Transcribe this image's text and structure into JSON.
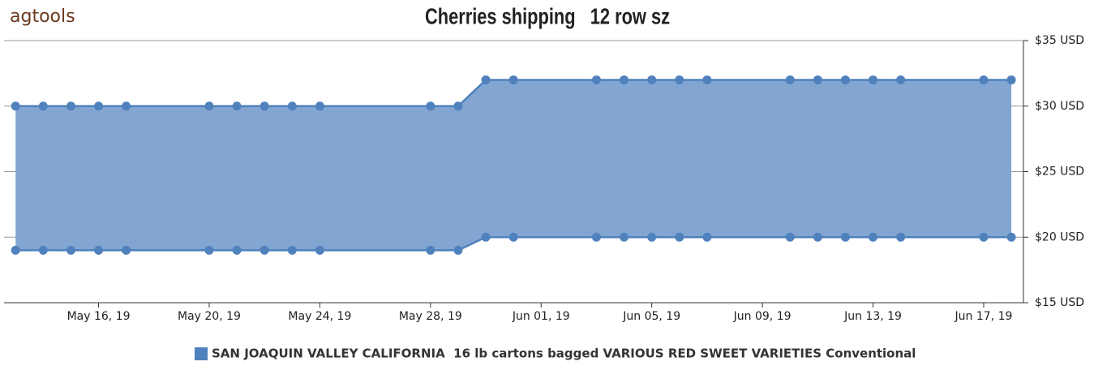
{
  "logo": "agtools",
  "chart_data": {
    "type": "arearange",
    "title": "Cherries shipping   12 row sz",
    "x": [
      "2019-05-13",
      "2019-05-14",
      "2019-05-15",
      "2019-05-16",
      "2019-05-17",
      "2019-05-20",
      "2019-05-21",
      "2019-05-22",
      "2019-05-23",
      "2019-05-24",
      "2019-05-28",
      "2019-05-29",
      "2019-05-30",
      "2019-05-31",
      "2019-06-03",
      "2019-06-04",
      "2019-06-05",
      "2019-06-06",
      "2019-06-07",
      "2019-06-10",
      "2019-06-11",
      "2019-06-12",
      "2019-06-13",
      "2019-06-14",
      "2019-06-17",
      "2019-06-18"
    ],
    "series": [
      {
        "name": "SAN JOAQUIN VALLEY CALIFORNIA  16 lb cartons bagged VARIOUS RED SWEET VARIETIES Conventional",
        "color": "#4f81bd",
        "fill": "#82a5d1",
        "low": [
          19,
          19,
          19,
          19,
          19,
          19,
          19,
          19,
          19,
          19,
          19,
          19,
          20,
          20,
          20,
          20,
          20,
          20,
          20,
          20,
          20,
          20,
          20,
          20,
          20,
          20
        ],
        "high": [
          30,
          30,
          30,
          30,
          30,
          30,
          30,
          30,
          30,
          30,
          30,
          30,
          32,
          32,
          32,
          32,
          32,
          32,
          32,
          32,
          32,
          32,
          32,
          32,
          32,
          32
        ]
      }
    ],
    "xlim": [
      "2019-05-12T14:00:00Z",
      "2019-06-18T10:30:00Z"
    ],
    "xticks": [
      {
        "value": "2019-05-16",
        "label": "May 16, 19"
      },
      {
        "value": "2019-05-20",
        "label": "May 20, 19"
      },
      {
        "value": "2019-05-24",
        "label": "May 24, 19"
      },
      {
        "value": "2019-05-28",
        "label": "May 28, 19"
      },
      {
        "value": "2019-06-01",
        "label": "Jun 01, 19"
      },
      {
        "value": "2019-06-05",
        "label": "Jun 05, 19"
      },
      {
        "value": "2019-06-09",
        "label": "Jun 09, 19"
      },
      {
        "value": "2019-06-13",
        "label": "Jun 13, 19"
      },
      {
        "value": "2019-06-17",
        "label": "Jun 17, 19"
      }
    ],
    "ylim": [
      15,
      35
    ],
    "yticks": [
      {
        "value": 15,
        "label": "$15 USD"
      },
      {
        "value": 20,
        "label": "$20 USD"
      },
      {
        "value": 25,
        "label": "$25 USD"
      },
      {
        "value": 30,
        "label": "$30 USD"
      },
      {
        "value": 35,
        "label": "$35 USD"
      }
    ],
    "grid": true,
    "legend": "bottom"
  }
}
